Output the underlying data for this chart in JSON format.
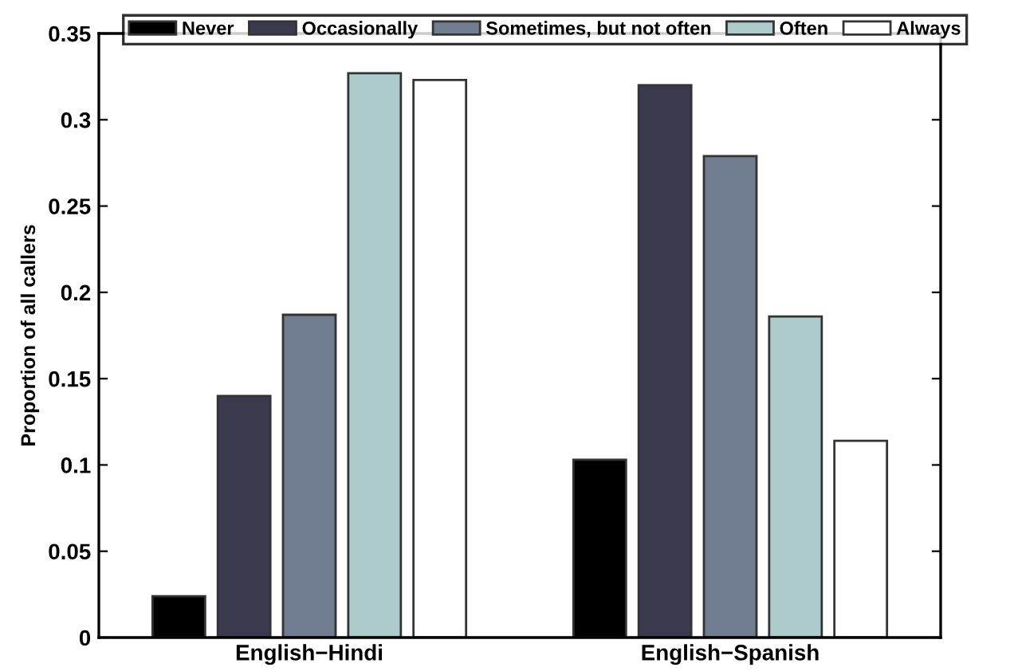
{
  "chart_data": {
    "type": "bar",
    "ylabel": "Proportion of all callers",
    "categories": [
      "English−Hindi",
      "English−Spanish"
    ],
    "series": [
      {
        "name": "Never",
        "color": "#000000",
        "values": [
          0.024,
          0.103
        ]
      },
      {
        "name": "Occasionally",
        "color": "#3a3a4f",
        "values": [
          0.14,
          0.32
        ]
      },
      {
        "name": "Sometimes, but not often",
        "color": "#717d90",
        "values": [
          0.187,
          0.279
        ]
      },
      {
        "name": "Often",
        "color": "#adcbcb",
        "values": [
          0.327,
          0.186
        ]
      },
      {
        "name": "Always",
        "color": "#ffffff",
        "values": [
          0.323,
          0.114
        ]
      }
    ],
    "ylim": [
      0,
      0.35
    ],
    "yticks": [
      0,
      0.05,
      0.1,
      0.15,
      0.2,
      0.25,
      0.3,
      0.35
    ],
    "grid": false,
    "legend": "top"
  }
}
